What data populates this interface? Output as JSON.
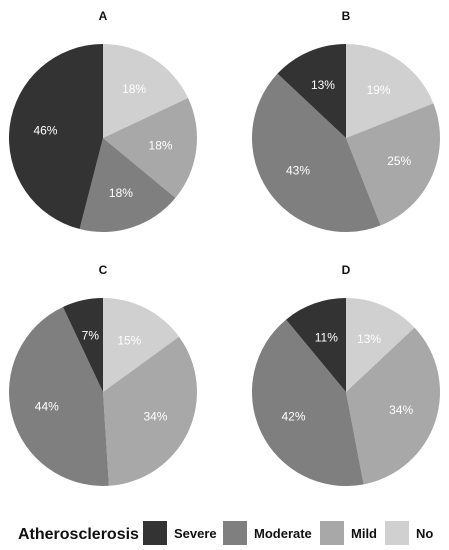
{
  "chart_data": [
    {
      "type": "pie",
      "title": "A",
      "categories": [
        "Severe",
        "Moderate",
        "Mild",
        "No"
      ],
      "values": [
        46,
        18,
        18,
        18
      ],
      "labels": [
        "46%",
        "18%",
        "18%",
        "18%"
      ]
    },
    {
      "type": "pie",
      "title": "B",
      "categories": [
        "Severe",
        "Moderate",
        "Mild",
        "No"
      ],
      "values": [
        13,
        43,
        25,
        19
      ],
      "labels": [
        "13%",
        "43%",
        "25%",
        "19%"
      ]
    },
    {
      "type": "pie",
      "title": "C",
      "categories": [
        "Severe",
        "Moderate",
        "Mild",
        "No"
      ],
      "values": [
        7,
        44,
        34,
        15
      ],
      "labels": [
        "7%",
        "44%",
        "34%",
        "15%"
      ]
    },
    {
      "type": "pie",
      "title": "D",
      "categories": [
        "Severe",
        "Moderate",
        "Mild",
        "No"
      ],
      "values": [
        11,
        42,
        34,
        13
      ],
      "labels": [
        "11%",
        "42%",
        "34%",
        "13%"
      ]
    }
  ],
  "legend": {
    "title": "Atherosclerosis",
    "items": [
      "Severe",
      "Moderate",
      "Mild",
      "No"
    ],
    "placement": "bottom"
  },
  "colors": {
    "Severe": "#333333",
    "Moderate": "#7f7f7f",
    "Mild": "#a8a8a8",
    "No": "#d0d0d0",
    "label_light": "#ffffff",
    "background": "#ffffff"
  }
}
